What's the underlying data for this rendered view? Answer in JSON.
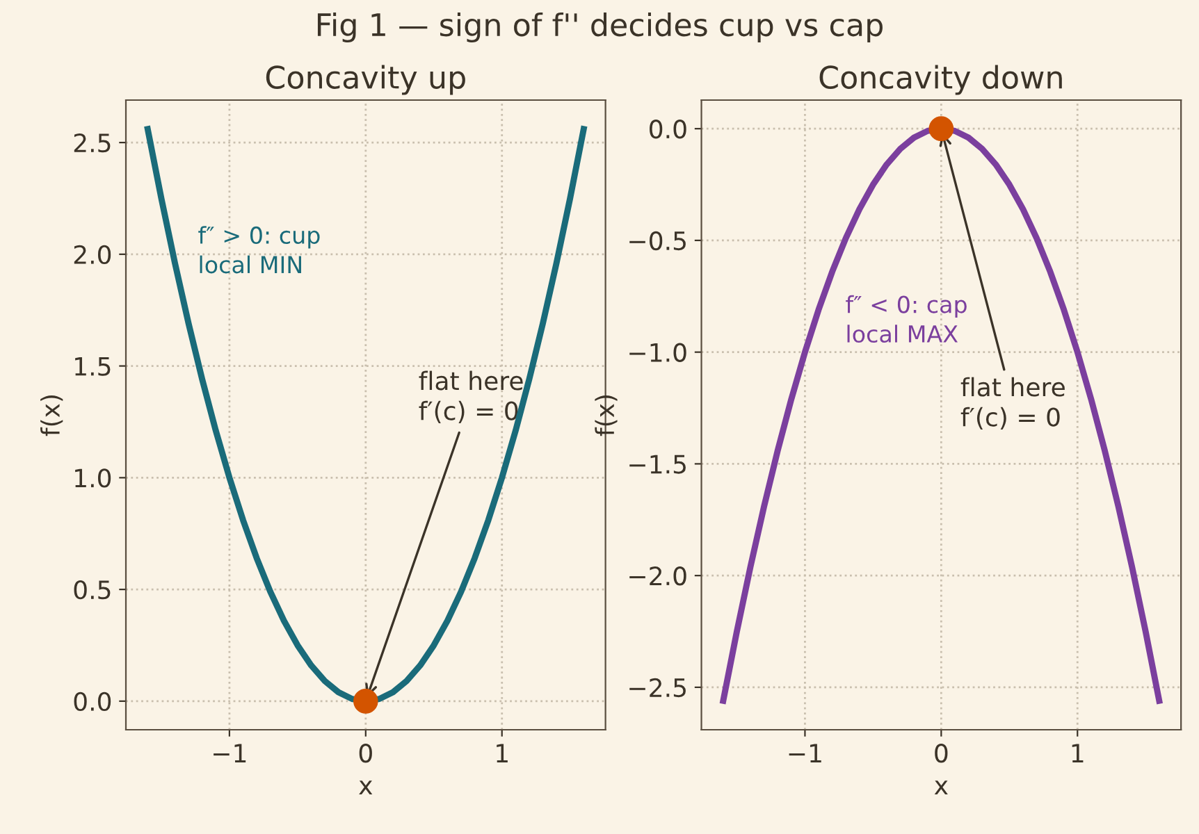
{
  "chart_data": [
    {
      "type": "line",
      "title": "Concavity up",
      "xlabel": "x",
      "ylabel": "f(x)",
      "annotations": [
        "Fig 1 — sign of f'' decides cup vs cap",
        "f″ > 0: cup\nlocal MIN",
        {
          "text": "flat here\nf′(c) = 0",
          "x": 0,
          "y": 0
        }
      ],
      "x": [
        -1.6,
        -1.5,
        -1.4,
        -1.3,
        -1.2,
        -1.1,
        -1.0,
        -0.9,
        -0.8,
        -0.7,
        -0.6,
        -0.5,
        -0.4,
        -0.3,
        -0.2,
        -0.1,
        0,
        0.1,
        0.2,
        0.3,
        0.4,
        0.5,
        0.6,
        0.7,
        0.8,
        0.9,
        1.0,
        1.1,
        1.2,
        1.3,
        1.4,
        1.5,
        1.6
      ],
      "series": [
        {
          "color": "#1a6b7a",
          "values": [
            2.56,
            2.25,
            1.96,
            1.69,
            1.44,
            1.21,
            1.0,
            0.81,
            0.64,
            0.49,
            0.36,
            0.25,
            0.16,
            0.09,
            0.04,
            0.01,
            0,
            0.01,
            0.04,
            0.09,
            0.16,
            0.25,
            0.36,
            0.49,
            0.64,
            0.81,
            1.0,
            1.21,
            1.44,
            1.69,
            1.96,
            2.25,
            2.56
          ]
        },
        {
          "type": "scatter",
          "color": "#d35400",
          "marker": "circle",
          "x": [
            0
          ],
          "values": [
            0
          ]
        }
      ],
      "xlim": [
        -1.76,
        1.76
      ],
      "ylim": [
        -0.128,
        2.69
      ],
      "xticks": [
        {
          "value": -1,
          "label": "−1"
        },
        0,
        1
      ],
      "yticks": [
        {
          "value": 0,
          "label": "0.0"
        },
        0.5,
        {
          "value": 1,
          "label": "1.0"
        },
        1.5,
        {
          "value": 2,
          "label": "2.0"
        },
        2.5
      ],
      "grid": true
    },
    {
      "type": "line",
      "title": "Concavity down",
      "xlabel": "x",
      "ylabel": "f(x)",
      "annotations": [
        "f″ < 0: cap\nlocal MAX",
        {
          "text": "flat here\nf′(c) = 0",
          "x": 0,
          "y": 0
        }
      ],
      "x": [
        -1.6,
        -1.5,
        -1.4,
        -1.3,
        -1.2,
        -1.1,
        -1.0,
        -0.9,
        -0.8,
        -0.7,
        -0.6,
        -0.5,
        -0.4,
        -0.3,
        -0.2,
        -0.1,
        0,
        0.1,
        0.2,
        0.3,
        0.4,
        0.5,
        0.6,
        0.7,
        0.8,
        0.9,
        1.0,
        1.1,
        1.2,
        1.3,
        1.4,
        1.5,
        1.6
      ],
      "series": [
        {
          "color": "#7b3f9e",
          "values": [
            -2.56,
            -2.25,
            -1.96,
            -1.69,
            -1.44,
            -1.21,
            -1.0,
            -0.81,
            -0.64,
            -0.49,
            -0.36,
            -0.25,
            -0.16,
            -0.09,
            -0.04,
            -0.01,
            0,
            -0.01,
            -0.04,
            -0.09,
            -0.16,
            -0.25,
            -0.36,
            -0.49,
            -0.64,
            -0.81,
            -1.0,
            -1.21,
            -1.44,
            -1.69,
            -1.96,
            -2.25,
            -2.56
          ]
        },
        {
          "type": "scatter",
          "color": "#d35400",
          "marker": "circle",
          "x": [
            0
          ],
          "values": [
            0
          ]
        }
      ],
      "xlim": [
        -1.76,
        1.76
      ],
      "ylim": [
        -2.69,
        0.128
      ],
      "xticks": [
        {
          "value": -1,
          "label": "−1"
        },
        0,
        1
      ],
      "yticks": [
        {
          "value": -2.5,
          "label": "−2.5"
        },
        {
          "value": -2,
          "label": "−2.0"
        },
        {
          "value": -1.5,
          "label": "−1.5"
        },
        {
          "value": -1,
          "label": "−1.0"
        },
        {
          "value": -0.5,
          "label": "−0.5"
        },
        {
          "value": 0,
          "label": "0.0"
        }
      ],
      "grid": true
    }
  ]
}
